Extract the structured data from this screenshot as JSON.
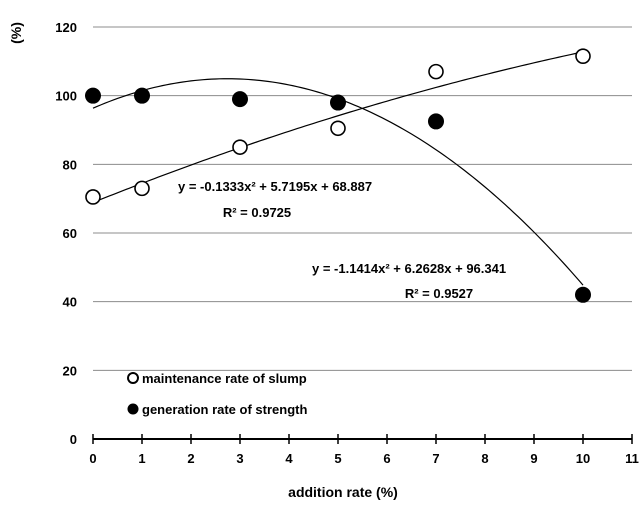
{
  "chart_data": {
    "type": "scatter",
    "title": "",
    "xlabel": "addition rate (%)",
    "ylabel": "(%)",
    "xlim": [
      0,
      11
    ],
    "ylim": [
      0,
      120
    ],
    "x_ticks": [
      0,
      1,
      2,
      3,
      4,
      5,
      6,
      7,
      8,
      9,
      10,
      11
    ],
    "y_ticks": [
      0,
      20,
      40,
      60,
      80,
      100,
      120
    ],
    "grid": "horizontal",
    "legend_position": "lower-left",
    "series": [
      {
        "name": "maintenance rate of slump",
        "marker": "open-circle",
        "x": [
          0,
          1,
          3,
          5,
          7,
          10
        ],
        "y": [
          70.5,
          73,
          85,
          90.5,
          107,
          111.5
        ],
        "trendline": {
          "type": "polynomial",
          "coefficients": [
            -0.1333,
            5.7195,
            68.887
          ],
          "equation": "y = -0.1333x² + 5.7195x + 68.887",
          "r_squared": "R² = 0.9725"
        }
      },
      {
        "name": "generation rate of strength",
        "marker": "filled-circle",
        "x": [
          0,
          1,
          3,
          5,
          7,
          10
        ],
        "y": [
          100,
          100,
          99,
          98,
          92.5,
          42
        ],
        "trendline": {
          "type": "polynomial",
          "coefficients": [
            -1.1414,
            6.2628,
            96.341
          ],
          "equation": "y = -1.1414x² + 6.2628x + 96.341",
          "r_squared": "R² = 0.9527"
        }
      }
    ]
  },
  "colors": {
    "axis": "#000000",
    "grid": "#8c8c8c",
    "marker": "#000000",
    "background": "#ffffff"
  }
}
